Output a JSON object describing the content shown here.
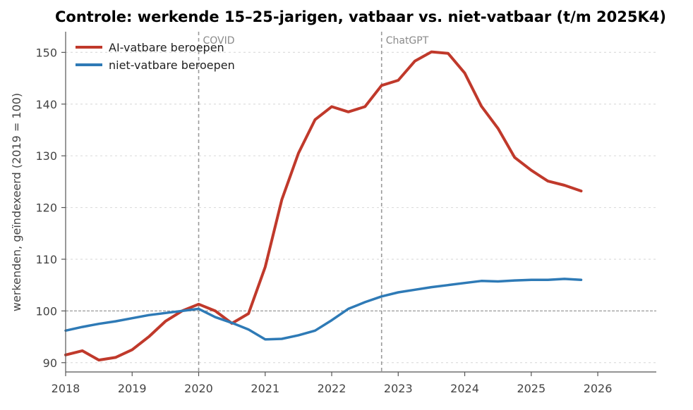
{
  "chart_data": {
    "type": "line",
    "title": "Controle: werkende 15–25-jarigen, vatbaar vs. niet-vatbaar (t/m 2025K4)",
    "xlabel": "",
    "ylabel": "werkenden, geïndexeerd (2019 = 100)",
    "xlim": [
      2018,
      2026.88
    ],
    "ylim": [
      88.2,
      154.0
    ],
    "x_ticks": [
      2018,
      2019,
      2020,
      2021,
      2022,
      2023,
      2024,
      2025,
      2026
    ],
    "y_ticks": [
      90,
      100,
      110,
      120,
      130,
      140,
      150
    ],
    "grid": "horizontal-dotted",
    "legend_position": "top-left",
    "reference_line_y": 100,
    "x": [
      2018.0,
      2018.25,
      2018.5,
      2018.75,
      2019.0,
      2019.25,
      2019.5,
      2019.75,
      2020.0,
      2020.25,
      2020.5,
      2020.75,
      2021.0,
      2021.25,
      2021.5,
      2021.75,
      2022.0,
      2022.25,
      2022.5,
      2022.75,
      2023.0,
      2023.25,
      2023.5,
      2023.75,
      2024.0,
      2024.25,
      2024.5,
      2024.75,
      2025.0,
      2025.25,
      2025.5,
      2025.75
    ],
    "series": [
      {
        "name": "AI-vatbare beroepen",
        "color": "#c0392b",
        "values": [
          91.5,
          92.3,
          90.5,
          91.0,
          92.5,
          95.0,
          98.0,
          100.0,
          101.3,
          100.0,
          97.6,
          99.5,
          108.5,
          121.5,
          130.5,
          137.0,
          139.5,
          138.5,
          139.5,
          143.6,
          144.6,
          148.3,
          150.1,
          149.8,
          146.0,
          139.6,
          135.3,
          129.7,
          127.2,
          125.1,
          124.3,
          123.2
        ]
      },
      {
        "name": "niet-vatbare beroepen",
        "color": "#2e7ab6",
        "values": [
          96.2,
          96.9,
          97.5,
          98.0,
          98.6,
          99.2,
          99.6,
          100.0,
          100.4,
          98.8,
          97.7,
          96.4,
          94.5,
          94.6,
          95.3,
          96.2,
          98.2,
          100.4,
          101.7,
          102.8,
          103.6,
          104.1,
          104.6,
          105.0,
          105.4,
          105.8,
          105.7,
          105.9,
          106.0,
          106.0,
          106.2,
          106.0
        ]
      }
    ],
    "annotations": [
      {
        "x": 2020.0,
        "label": "COVID"
      },
      {
        "x": 2022.75,
        "label": "ChatGPT"
      }
    ],
    "colors": {
      "reference_line": "#9a9a9a",
      "event_line": "#9a9a9a",
      "grid": "#dddddd",
      "axis": "#555555"
    }
  }
}
